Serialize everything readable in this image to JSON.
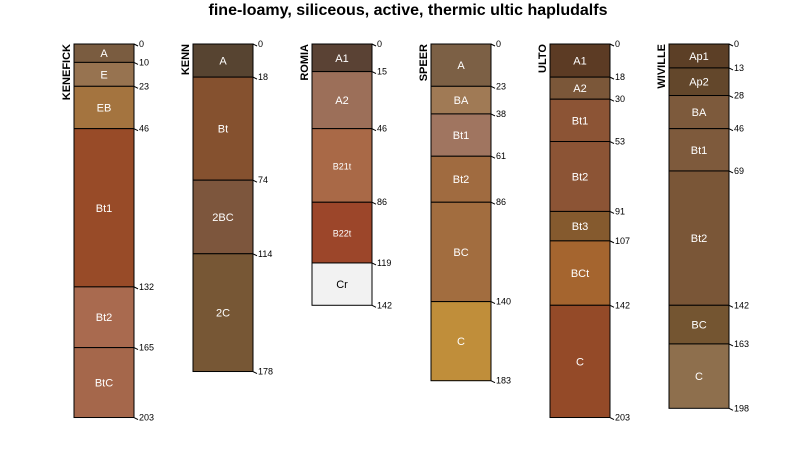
{
  "chart_data": {
    "type": "soil-profile",
    "title": "fine-loamy, siliceous, active, thermic ultic hapludalfs",
    "depth_unit": "cm",
    "profiles": [
      {
        "id": "KENEFICK",
        "horizons": [
          {
            "name": "A",
            "top": 0,
            "bottom": 10,
            "color": "#7a5c40"
          },
          {
            "name": "E",
            "top": 10,
            "bottom": 23,
            "color": "#977350"
          },
          {
            "name": "EB",
            "top": 23,
            "bottom": 46,
            "color": "#a4743f"
          },
          {
            "name": "Bt1",
            "top": 46,
            "bottom": 132,
            "color": "#984b28"
          },
          {
            "name": "Bt2",
            "top": 132,
            "bottom": 165,
            "color": "#a96a4f"
          },
          {
            "name": "BtC",
            "top": 165,
            "bottom": 203,
            "color": "#a5674b"
          }
        ]
      },
      {
        "id": "KENN",
        "horizons": [
          {
            "name": "A",
            "top": 0,
            "bottom": 18,
            "color": "#574431"
          },
          {
            "name": "Bt",
            "top": 18,
            "bottom": 74,
            "color": "#85512f"
          },
          {
            "name": "2BC",
            "top": 74,
            "bottom": 114,
            "color": "#7d563d"
          },
          {
            "name": "2C",
            "top": 114,
            "bottom": 178,
            "color": "#775735"
          }
        ]
      },
      {
        "id": "ROMIA",
        "horizons": [
          {
            "name": "A1",
            "top": 0,
            "bottom": 15,
            "color": "#5a4234"
          },
          {
            "name": "A2",
            "top": 15,
            "bottom": 46,
            "color": "#9c6f59"
          },
          {
            "name": "B21t",
            "top": 46,
            "bottom": 86,
            "color": "#a96947"
          },
          {
            "name": "B22t",
            "top": 86,
            "bottom": 119,
            "color": "#9c462a"
          },
          {
            "name": "Cr",
            "top": 119,
            "bottom": 142,
            "color": "#f2f2f2"
          }
        ]
      },
      {
        "id": "SPEER",
        "horizons": [
          {
            "name": "A",
            "top": 0,
            "bottom": 23,
            "color": "#7c6045"
          },
          {
            "name": "BA",
            "top": 23,
            "bottom": 38,
            "color": "#a07a55"
          },
          {
            "name": "Bt1",
            "top": 38,
            "bottom": 61,
            "color": "#a07560"
          },
          {
            "name": "Bt2",
            "top": 61,
            "bottom": 86,
            "color": "#a06b40"
          },
          {
            "name": "BC",
            "top": 86,
            "bottom": 140,
            "color": "#a26d3f"
          },
          {
            "name": "C",
            "top": 140,
            "bottom": 183,
            "color": "#c08e3a"
          }
        ]
      },
      {
        "id": "ULTO",
        "horizons": [
          {
            "name": "A1",
            "top": 0,
            "bottom": 18,
            "color": "#5c3b24"
          },
          {
            "name": "A2",
            "top": 18,
            "bottom": 30,
            "color": "#7b5739"
          },
          {
            "name": "Bt1",
            "top": 30,
            "bottom": 53,
            "color": "#8c5435"
          },
          {
            "name": "Bt2",
            "top": 53,
            "bottom": 91,
            "color": "#8c5435"
          },
          {
            "name": "Bt3",
            "top": 91,
            "bottom": 107,
            "color": "#855a2e"
          },
          {
            "name": "BCt",
            "top": 107,
            "bottom": 142,
            "color": "#a5652f"
          },
          {
            "name": "C",
            "top": 142,
            "bottom": 203,
            "color": "#944a28"
          }
        ]
      },
      {
        "id": "WIVILLE",
        "horizons": [
          {
            "name": "Ap1",
            "top": 0,
            "bottom": 13,
            "color": "#5c3f26"
          },
          {
            "name": "Ap2",
            "top": 13,
            "bottom": 28,
            "color": "#63472b"
          },
          {
            "name": "BA",
            "top": 28,
            "bottom": 46,
            "color": "#7d5a3c"
          },
          {
            "name": "Bt1",
            "top": 46,
            "bottom": 69,
            "color": "#7e5a3c"
          },
          {
            "name": "Bt2",
            "top": 69,
            "bottom": 142,
            "color": "#7a5637"
          },
          {
            "name": "BC",
            "top": 142,
            "bottom": 163,
            "color": "#745531"
          },
          {
            "name": "C",
            "top": 163,
            "bottom": 198,
            "color": "#8e6f4d"
          }
        ]
      }
    ]
  }
}
